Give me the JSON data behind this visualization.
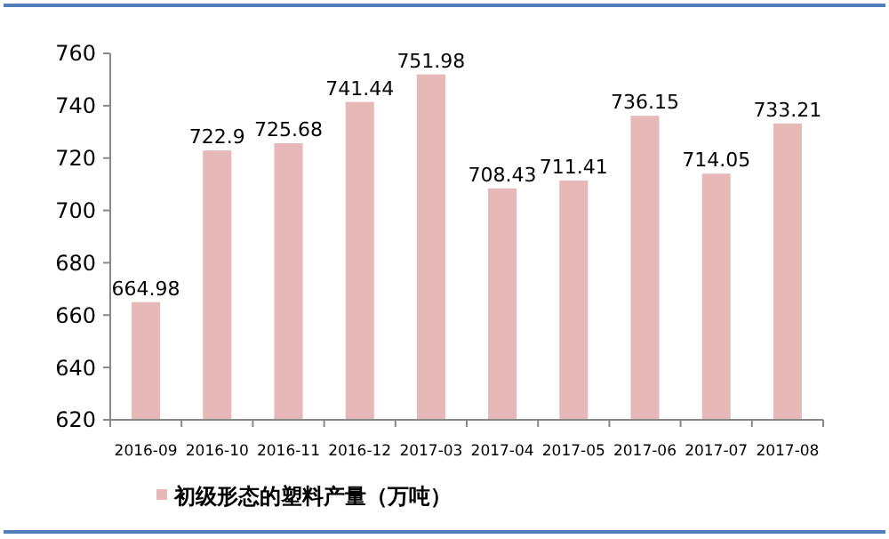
{
  "chart_data": {
    "type": "bar",
    "categories": [
      "2016-09",
      "2016-10",
      "2016-11",
      "2016-12",
      "2017-03",
      "2017-04",
      "2017-05",
      "2017-06",
      "2017-07",
      "2017-08"
    ],
    "series": [
      {
        "name": "初级形态的塑料产量（万吨）",
        "color": "#e6b8b7",
        "values": [
          664.98,
          722.9,
          725.68,
          741.44,
          751.98,
          708.43,
          711.41,
          736.15,
          714.05,
          733.21
        ]
      }
    ],
    "ylim": [
      620,
      760
    ],
    "yticks": [
      620,
      640,
      660,
      680,
      700,
      720,
      740,
      760
    ],
    "grid": false,
    "data_labels": true,
    "legend": "bottom left"
  }
}
